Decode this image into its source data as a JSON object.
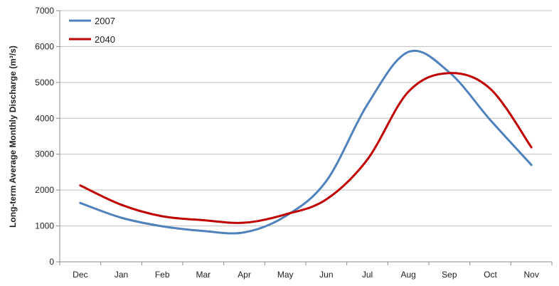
{
  "chart_data": {
    "type": "line",
    "title": "",
    "xlabel": "",
    "ylabel": "Long-term Average Monthly Discharge (m³/s)",
    "categories": [
      "Dec",
      "Jan",
      "Feb",
      "Mar",
      "Apr",
      "May",
      "Jun",
      "Jul",
      "Aug",
      "Sep",
      "Oct",
      "Nov"
    ],
    "ylim": [
      0,
      7000
    ],
    "yticks": [
      0,
      1000,
      2000,
      3000,
      4000,
      5000,
      6000,
      7000
    ],
    "grid": "horizontal",
    "legend": "top-left",
    "series": [
      {
        "name": "2007",
        "color": "#4f81bd",
        "values": [
          1640,
          1230,
          990,
          860,
          820,
          1270,
          2250,
          4380,
          5850,
          5280,
          3950,
          2700
        ]
      },
      {
        "name": "2040",
        "color": "#c00000",
        "values": [
          2130,
          1590,
          1270,
          1160,
          1090,
          1320,
          1740,
          2850,
          4740,
          5260,
          4820,
          3190
        ]
      }
    ]
  }
}
